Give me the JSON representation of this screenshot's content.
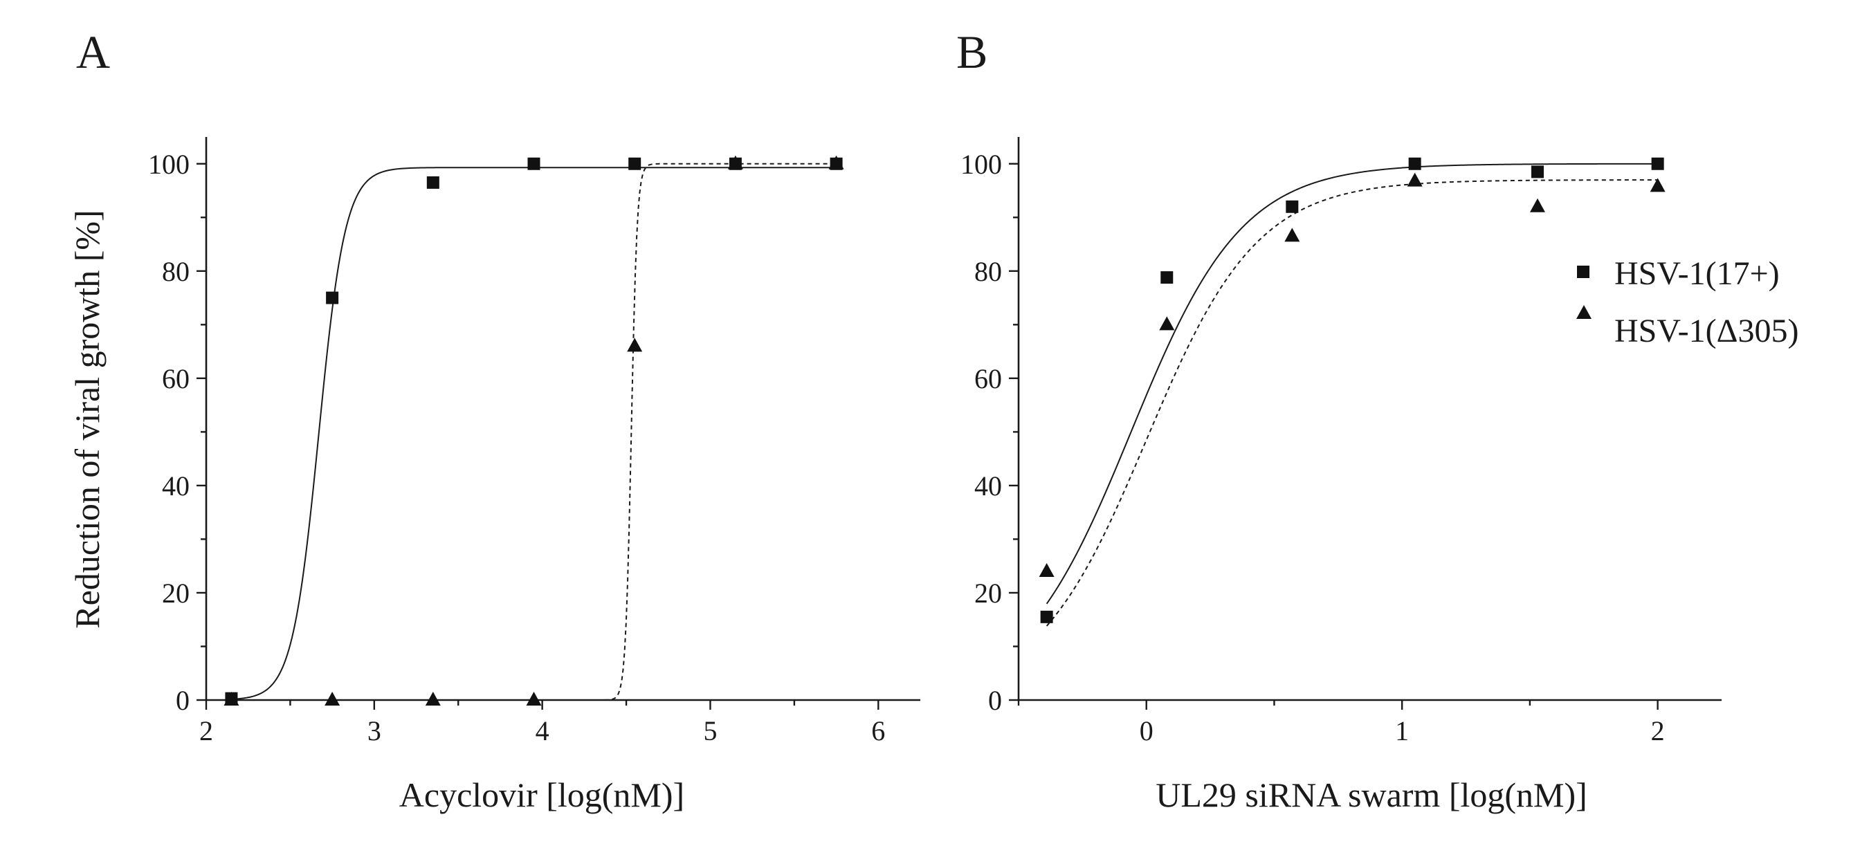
{
  "figure": {
    "ylabel": "Reduction of viral growth [%]"
  },
  "chart_data": [
    {
      "type": "scatter",
      "panel": "A",
      "title": "",
      "xlabel": "Acyclovir [log(nM)]",
      "ylabel": "Reduction of viral growth [%]",
      "xlim": [
        2,
        6.25
      ],
      "ylim": [
        0,
        105
      ],
      "xticks": [
        2,
        3,
        4,
        5,
        6
      ],
      "yticks": [
        0,
        20,
        40,
        60,
        80,
        100
      ],
      "grid": false,
      "series": [
        {
          "name": "HSV-1(17+)",
          "marker": "square",
          "x": [
            2.15,
            2.75,
            3.35,
            3.95,
            4.55,
            5.15,
            5.75
          ],
          "y": [
            0.3,
            75,
            96.5,
            100,
            100,
            100,
            100
          ],
          "fit": {
            "style": "solid",
            "bottom": 0,
            "top": 99.3,
            "log_ec50": 2.67,
            "hill": 5.5
          }
        },
        {
          "name": "HSV-1(Δ305)",
          "marker": "triangle",
          "x": [
            2.15,
            2.75,
            3.35,
            3.95,
            4.55,
            5.15,
            5.75
          ],
          "y": [
            0,
            0,
            0,
            0,
            66,
            100,
            100
          ],
          "fit": {
            "style": "dashed",
            "bottom": 0,
            "top": 100,
            "log_ec50": 4.53,
            "hill": 25
          }
        }
      ]
    },
    {
      "type": "scatter",
      "panel": "B",
      "title": "",
      "xlabel": "UL29 siRNA swarm [log(nM)]",
      "ylabel": "",
      "xlim": [
        -0.5,
        2.25
      ],
      "ylim": [
        0,
        105
      ],
      "xticks": [
        0,
        1,
        2
      ],
      "yticks": [
        0,
        20,
        40,
        60,
        80,
        100
      ],
      "grid": false,
      "legend_position": "right",
      "series": [
        {
          "name": "HSV-1(17+)",
          "marker": "square",
          "x": [
            -0.39,
            0.08,
            0.57,
            1.05,
            1.53,
            2.0
          ],
          "y": [
            15.5,
            78.8,
            92,
            100,
            98.5,
            100
          ],
          "fit": {
            "style": "solid",
            "bottom": 0,
            "top": 100,
            "log_ec50": -0.06,
            "hill": 2.0
          }
        },
        {
          "name": "HSV-1(Δ305)",
          "marker": "triangle",
          "x": [
            -0.39,
            0.08,
            0.57,
            1.05,
            1.53,
            2.0
          ],
          "y": [
            24,
            70,
            86.5,
            96.8,
            92,
            95.8
          ],
          "fit": {
            "style": "dashed",
            "bottom": 0,
            "top": 97,
            "log_ec50": 0.0,
            "hill": 2.0
          }
        }
      ]
    }
  ]
}
